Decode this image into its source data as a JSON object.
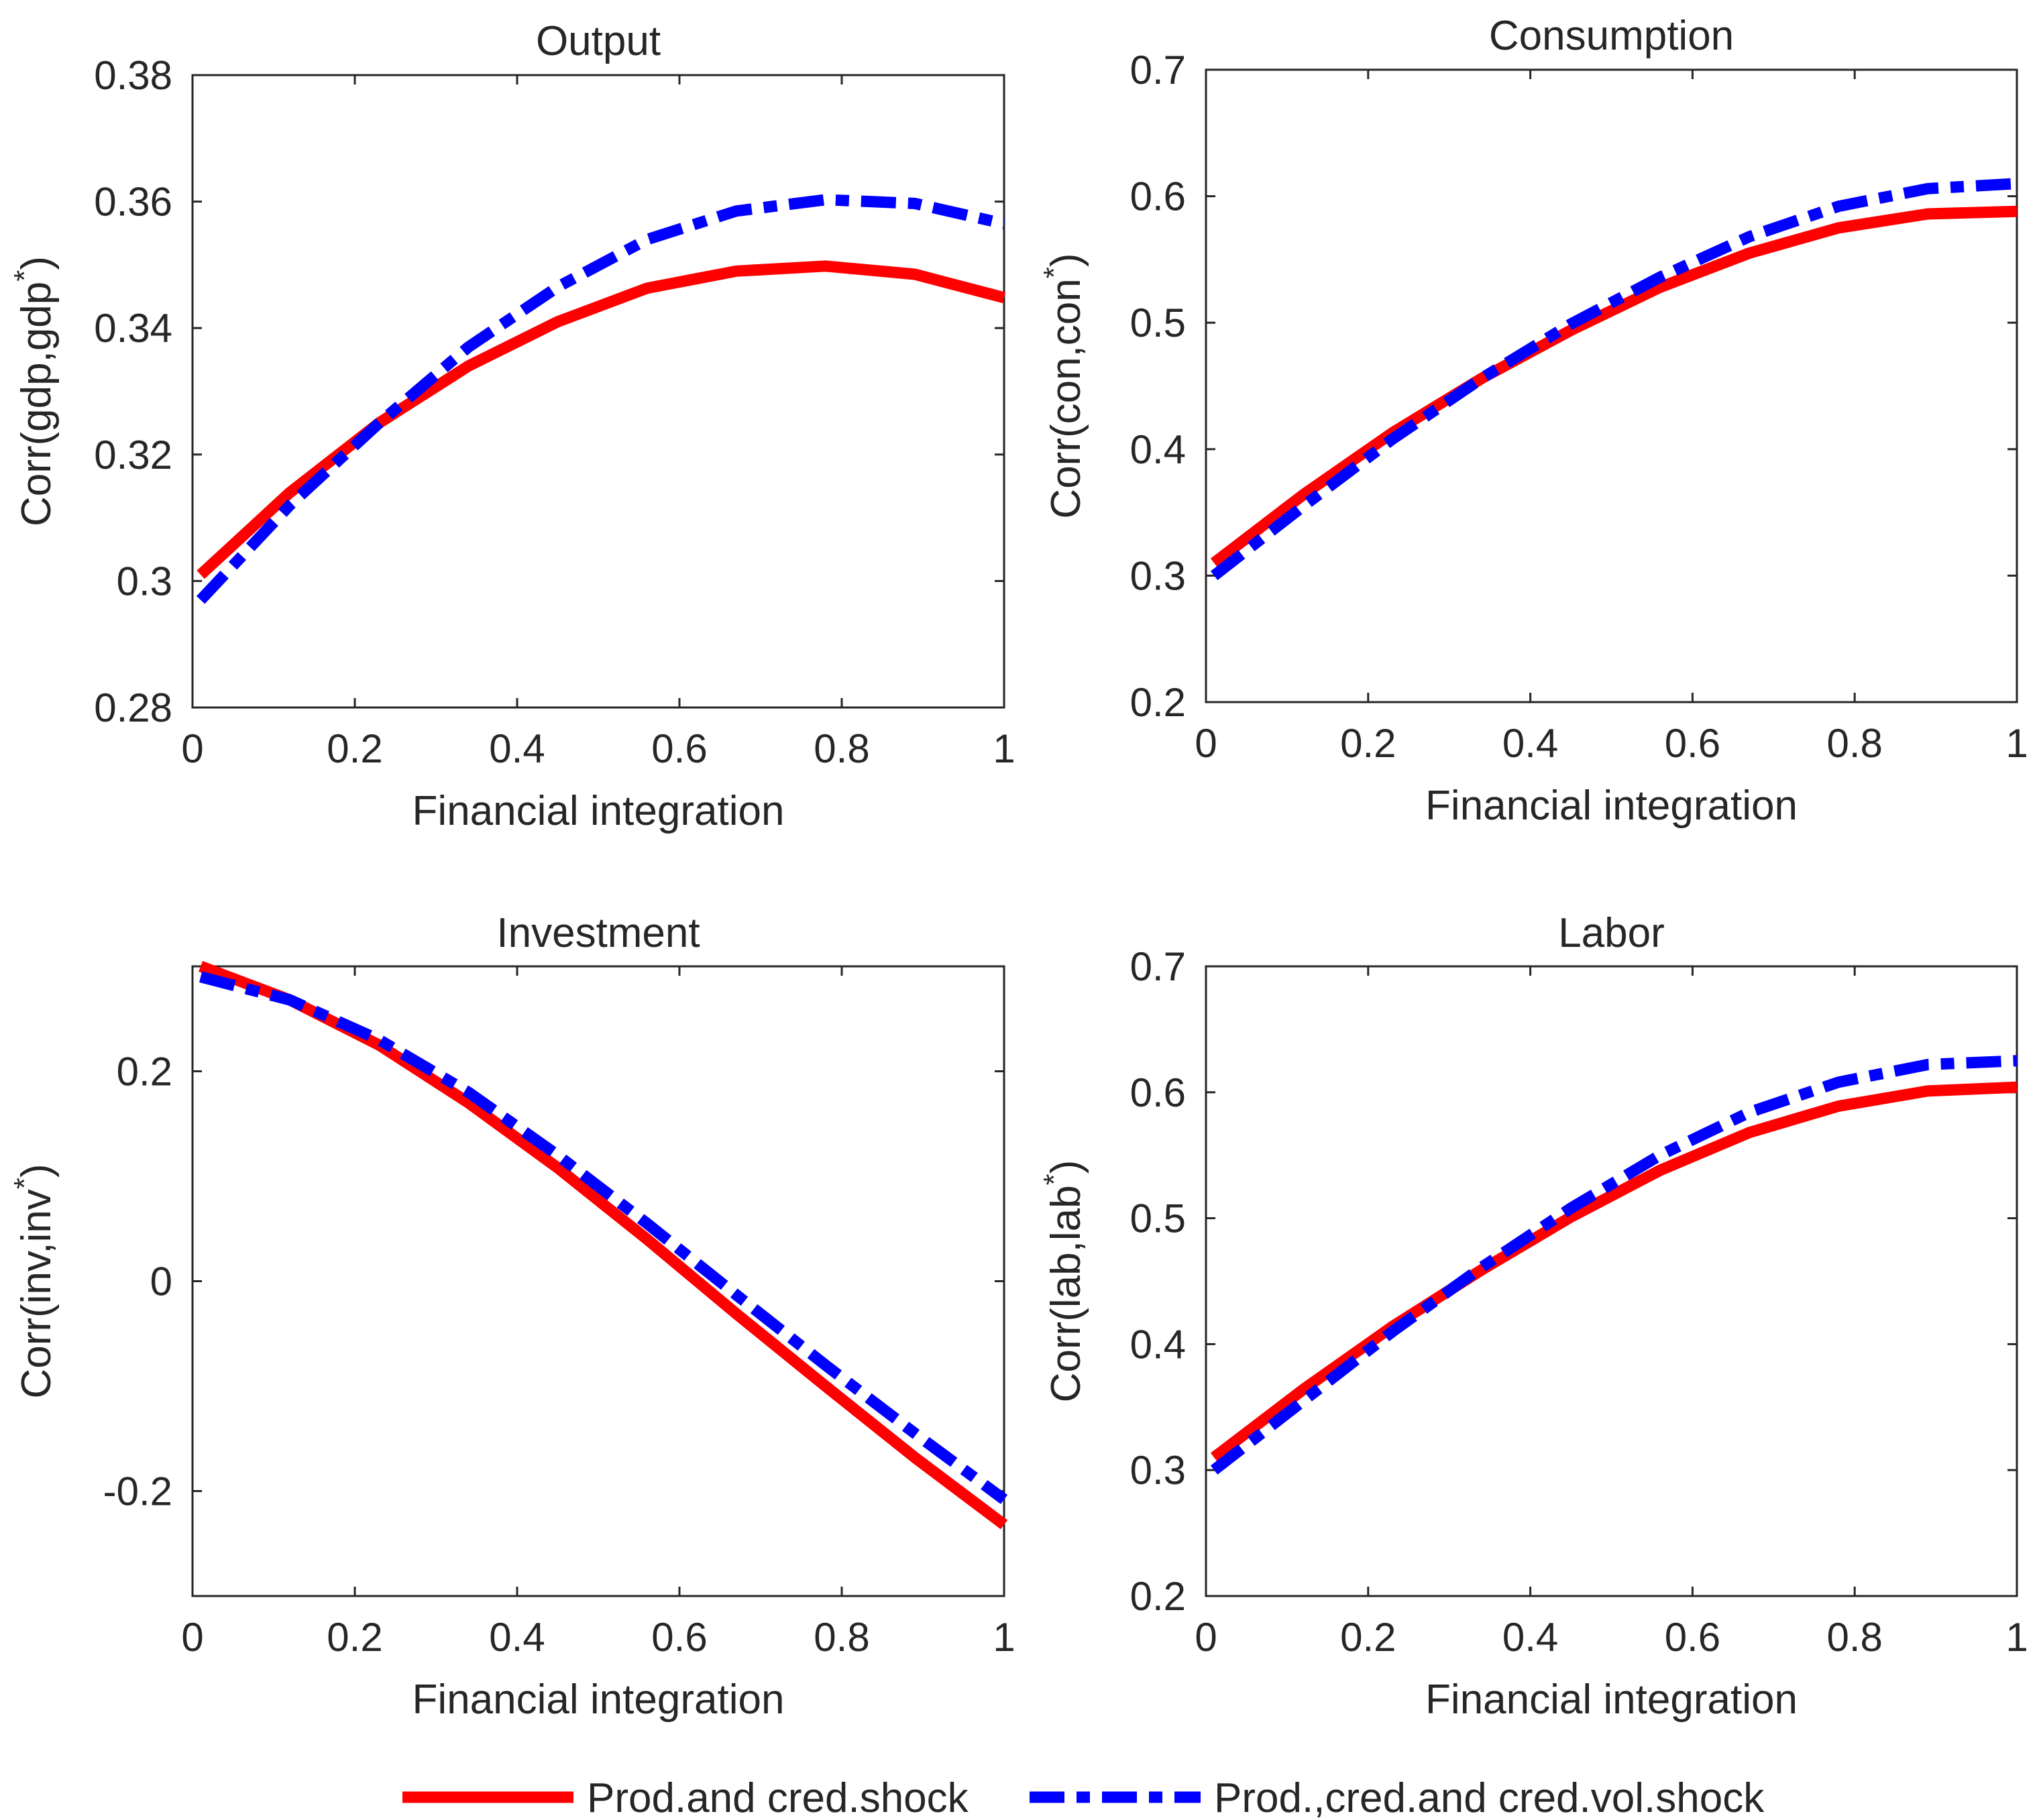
{
  "legend": {
    "entries": [
      {
        "label": "Prod.and cred.shock",
        "color": "#ff0000",
        "style": "solid"
      },
      {
        "label": "Prod.,cred.and cred.vol.shock",
        "color": "#0000ff",
        "style": "dashdot"
      }
    ]
  },
  "chart_data": [
    {
      "type": "line",
      "title": "Output",
      "xlabel": "Financial integration",
      "ylabel": "Corr(gdp,gdp",
      "ylabel_sup": "*",
      "ylabel_close": ")",
      "xlim": [
        0,
        1
      ],
      "ylim": [
        0.28,
        0.38
      ],
      "xticks": [
        0,
        0.2,
        0.4,
        0.6,
        0.8,
        1
      ],
      "xtick_labels": [
        "0",
        "0.2",
        "0.4",
        "0.6",
        "0.8",
        "1"
      ],
      "yticks": [
        0.28,
        0.3,
        0.32,
        0.34,
        0.36,
        0.38
      ],
      "ytick_labels": [
        "0.28",
        "0.3",
        "0.32",
        "0.34",
        "0.36",
        "0.38"
      ],
      "x": [
        0.01,
        0.12,
        0.23,
        0.34,
        0.45,
        0.56,
        0.67,
        0.78,
        0.89,
        1.0
      ],
      "series": [
        {
          "name": "Prod.and cred.shock",
          "values": [
            0.301,
            0.314,
            0.325,
            0.334,
            0.341,
            0.3463,
            0.349,
            0.3498,
            0.3485,
            0.3448
          ]
        },
        {
          "name": "Prod.,cred.and cred.vol.shock",
          "values": [
            0.297,
            0.312,
            0.325,
            0.337,
            0.3465,
            0.354,
            0.3585,
            0.3603,
            0.3597,
            0.3565
          ]
        }
      ]
    },
    {
      "type": "line",
      "title": "Consumption",
      "xlabel": "Financial integration",
      "ylabel": "Corr(con,con",
      "ylabel_sup": "*",
      "ylabel_close": ")",
      "xlim": [
        0,
        1
      ],
      "ylim": [
        0.2,
        0.7
      ],
      "xticks": [
        0,
        0.2,
        0.4,
        0.6,
        0.8,
        1
      ],
      "xtick_labels": [
        "0",
        "0.2",
        "0.4",
        "0.6",
        "0.8",
        "1"
      ],
      "yticks": [
        0.2,
        0.3,
        0.4,
        0.5,
        0.6,
        0.7
      ],
      "ytick_labels": [
        "0.2",
        "0.3",
        "0.4",
        "0.5",
        "0.6",
        "0.7"
      ],
      "x": [
        0.01,
        0.12,
        0.23,
        0.34,
        0.45,
        0.56,
        0.67,
        0.78,
        0.89,
        1.0
      ],
      "series": [
        {
          "name": "Prod.and cred.shock",
          "values": [
            0.31,
            0.364,
            0.413,
            0.456,
            0.494,
            0.528,
            0.555,
            0.575,
            0.586,
            0.588
          ]
        },
        {
          "name": "Prod.,cred.and cred.vol.shock",
          "values": [
            0.3,
            0.355,
            0.408,
            0.456,
            0.499,
            0.536,
            0.568,
            0.592,
            0.606,
            0.61
          ]
        }
      ]
    },
    {
      "type": "line",
      "title": "Investment",
      "xlabel": "Financial integration",
      "ylabel": "Corr(inv,inv",
      "ylabel_sup": "*",
      "ylabel_close": ")",
      "xlim": [
        0,
        1
      ],
      "ylim": [
        -0.3,
        0.3
      ],
      "xticks": [
        0,
        0.2,
        0.4,
        0.6,
        0.8,
        1
      ],
      "xtick_labels": [
        "0",
        "0.2",
        "0.4",
        "0.6",
        "0.8",
        "1"
      ],
      "yticks": [
        -0.2,
        0,
        0.2
      ],
      "ytick_labels": [
        "-0.2",
        "0",
        "0.2"
      ],
      "x": [
        0.01,
        0.12,
        0.23,
        0.34,
        0.45,
        0.56,
        0.67,
        0.78,
        0.89,
        1.0
      ],
      "series": [
        {
          "name": "Prod.and cred.shock",
          "values": [
            0.3,
            0.268,
            0.225,
            0.17,
            0.108,
            0.04,
            -0.031,
            -0.1,
            -0.168,
            -0.232
          ]
        },
        {
          "name": "Prod.,cred.and cred.vol.shock",
          "values": [
            0.29,
            0.268,
            0.23,
            0.18,
            0.12,
            0.055,
            -0.013,
            -0.08,
            -0.145,
            -0.208
          ]
        }
      ]
    },
    {
      "type": "line",
      "title": "Labor",
      "xlabel": "Financial integration",
      "ylabel": "Corr(lab,lab",
      "ylabel_sup": "*",
      "ylabel_close": ")",
      "xlim": [
        0,
        1
      ],
      "ylim": [
        0.2,
        0.7
      ],
      "xticks": [
        0,
        0.2,
        0.4,
        0.6,
        0.8,
        1
      ],
      "xtick_labels": [
        "0",
        "0.2",
        "0.4",
        "0.6",
        "0.8",
        "1"
      ],
      "yticks": [
        0.2,
        0.3,
        0.4,
        0.5,
        0.6,
        0.7
      ],
      "ytick_labels": [
        "0.2",
        "0.3",
        "0.4",
        "0.5",
        "0.6",
        "0.7"
      ],
      "x": [
        0.01,
        0.12,
        0.23,
        0.34,
        0.45,
        0.56,
        0.67,
        0.78,
        0.89,
        1.0
      ],
      "series": [
        {
          "name": "Prod.and cred.shock",
          "values": [
            0.31,
            0.364,
            0.414,
            0.459,
            0.501,
            0.538,
            0.568,
            0.589,
            0.601,
            0.604
          ]
        },
        {
          "name": "Prod.,cred.and cred.vol.shock",
          "values": [
            0.3,
            0.355,
            0.41,
            0.461,
            0.508,
            0.55,
            0.584,
            0.608,
            0.622,
            0.625
          ]
        }
      ]
    }
  ]
}
